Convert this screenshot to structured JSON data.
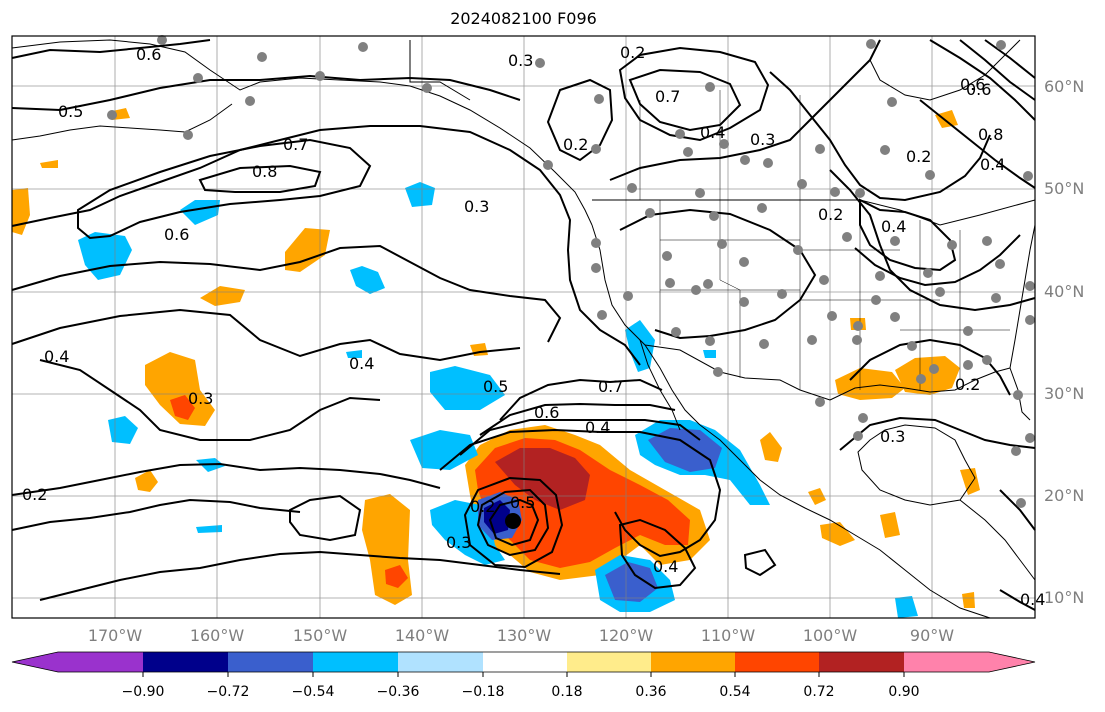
{
  "title": "2024082100 F096",
  "lon_labels": [
    "170°W",
    "160°W",
    "150°W",
    "140°W",
    "130°W",
    "120°W",
    "110°W",
    "100°W",
    "90°W"
  ],
  "lat_labels": [
    "60°N",
    "50°N",
    "40°N",
    "30°N",
    "20°N",
    "10°N"
  ],
  "colorbar": {
    "colors": [
      "#9a32cd",
      "#00008b",
      "#3a5fcd",
      "#00bfff",
      "#b0e2ff",
      "#ffffff",
      "#ffec8b",
      "#ffa500",
      "#ff4500",
      "#b22222",
      "#ff82ab"
    ],
    "tick_labels": [
      "−0.90",
      "−0.72",
      "−0.54",
      "−0.36",
      "−0.18",
      "0.18",
      "0.36",
      "0.54",
      "0.72",
      "0.90"
    ]
  },
  "contour_labels": [
    "0.6",
    "0.5",
    "0.7",
    "0.8",
    "0.6",
    "0.4",
    "0.3",
    "0.2",
    "0.4",
    "0.5",
    "0.6",
    "0.7",
    "0.4",
    "0.3",
    "0.2",
    "0.5",
    "0.4",
    "0.3",
    "0.2",
    "0.3",
    "0.6",
    "0.8",
    "0.4",
    "0.2",
    "0.4",
    "0.2",
    "0.3",
    "0.3",
    "0.7",
    "0.4",
    "0.6",
    "0.2",
    "0.2",
    "0.4"
  ],
  "colors": {
    "land": "#ffffff",
    "contour": "#000000",
    "grid": "#808080",
    "station": "#808080",
    "axis_label": "#7f7f7f"
  }
}
